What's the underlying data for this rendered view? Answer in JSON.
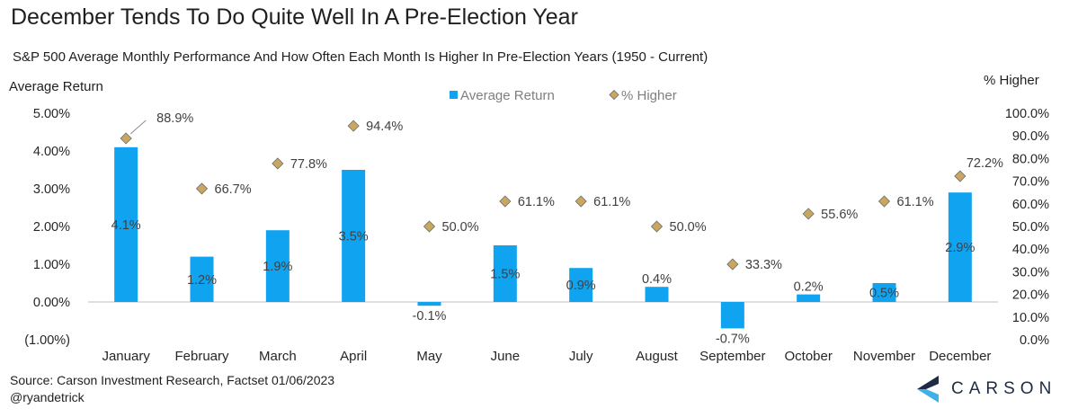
{
  "title": "December Tends To Do Quite Well In A Pre-Election Year",
  "subtitle": "S&P 500 Average Monthly Performance And How Often Each Month Is Higher In Pre-Election Years (1950 - Current)",
  "source": "Source: Carson Investment Research, Factset 01/06/2023",
  "handle": "@ryandetrick",
  "brand": "CARSON",
  "colors": {
    "bar": "#0fa3f0",
    "marker": "#c9a760",
    "marker_edge": "#6b6b6b",
    "axis": "#bfbfbf",
    "logo_dark": "#1f2a44",
    "logo_light": "#3fb0e8"
  },
  "chart_data": {
    "type": "bar",
    "categories": [
      "January",
      "February",
      "March",
      "April",
      "May",
      "June",
      "July",
      "August",
      "September",
      "October",
      "November",
      "December"
    ],
    "y_left_label": "Average Return",
    "y_right_label": "% Higher",
    "y_left_ticks": [
      "5.00%",
      "4.00%",
      "3.00%",
      "2.00%",
      "1.00%",
      "0.00%",
      "(1.00%)"
    ],
    "y_right_ticks": [
      "100.0%",
      "90.0%",
      "80.0%",
      "70.0%",
      "60.0%",
      "50.0%",
      "40.0%",
      "30.0%",
      "20.0%",
      "10.0%",
      "0.0%"
    ],
    "ylim_left": [
      -1,
      5
    ],
    "ylim_right": [
      0,
      100
    ],
    "legend_position": "top",
    "series": [
      {
        "name": "Average Return",
        "type": "bar",
        "axis": "left",
        "values": [
          4.1,
          1.2,
          1.9,
          3.5,
          -0.1,
          1.5,
          0.9,
          0.4,
          -0.7,
          0.2,
          0.5,
          2.9
        ],
        "labels": [
          "4.1%",
          "1.2%",
          "1.9%",
          "3.5%",
          "-0.1%",
          "1.5%",
          "0.9%",
          "0.4%",
          "-0.7%",
          "0.2%",
          "0.5%",
          "2.9%"
        ]
      },
      {
        "name": "% Higher",
        "type": "scatter",
        "axis": "right",
        "values": [
          88.9,
          66.7,
          77.8,
          94.4,
          50.0,
          61.1,
          61.1,
          50.0,
          33.3,
          55.6,
          61.1,
          72.2
        ],
        "labels": [
          "88.9%",
          "66.7%",
          "77.8%",
          "94.4%",
          "50.0%",
          "61.1%",
          "61.1%",
          "50.0%",
          "33.3%",
          "55.6%",
          "61.1%",
          "72.2%"
        ]
      }
    ]
  }
}
